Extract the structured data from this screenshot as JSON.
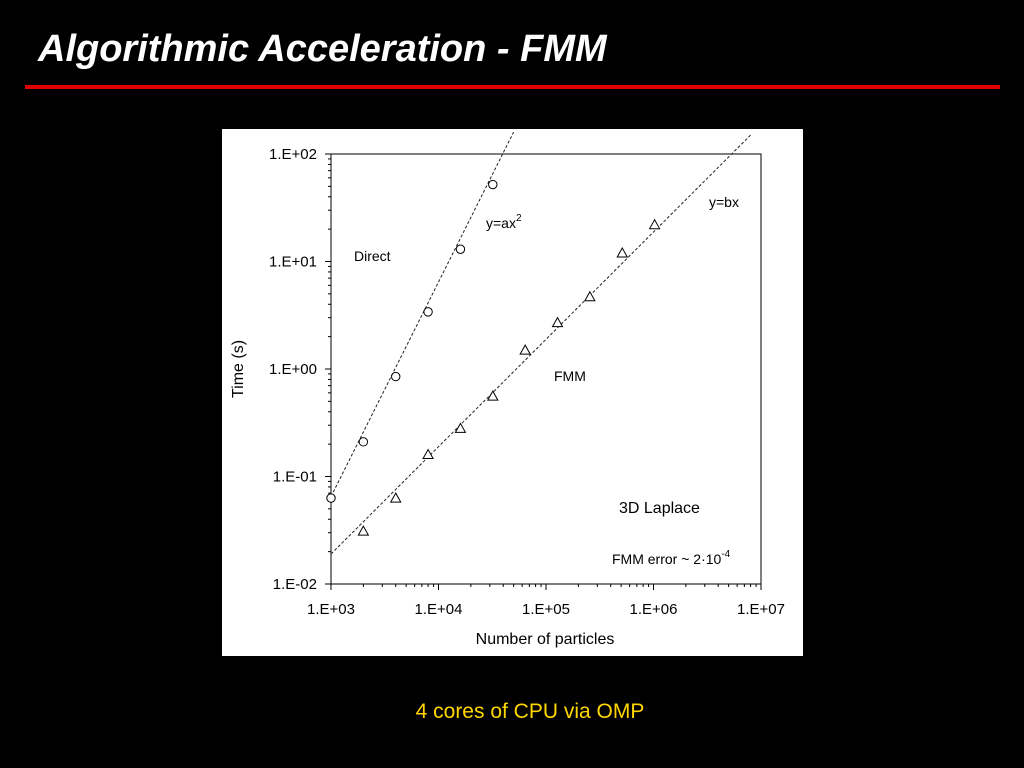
{
  "slide": {
    "title": "Algorithmic Acceleration - FMM",
    "footer": "4 cores of CPU via OMP",
    "rule_color": "#e00000",
    "footer_color": "#ffd700"
  },
  "chart_data": {
    "type": "scatter",
    "xscale": "log",
    "yscale": "log",
    "xlim": [
      1000,
      10000000
    ],
    "ylim": [
      0.01,
      100
    ],
    "xticks": [
      "1.E+03",
      "1.E+04",
      "1.E+05",
      "1.E+06",
      "1.E+07"
    ],
    "yticks": [
      "1.E-02",
      "1.E-01",
      "1.E+00",
      "1.E+01",
      "1.E+02"
    ],
    "xlabel": "Number of particles",
    "ylabel": "Time (s)",
    "grid": false,
    "series": [
      {
        "name": "Direct",
        "marker": "circle",
        "points": [
          {
            "x": 1000,
            "y": 0.063
          },
          {
            "x": 2000,
            "y": 0.21
          },
          {
            "x": 4000,
            "y": 0.85
          },
          {
            "x": 8000,
            "y": 3.4
          },
          {
            "x": 16000,
            "y": 13
          },
          {
            "x": 32000,
            "y": 52
          }
        ]
      },
      {
        "name": "FMM",
        "marker": "triangle",
        "points": [
          {
            "x": 2000,
            "y": 0.031
          },
          {
            "x": 4000,
            "y": 0.063
          },
          {
            "x": 8000,
            "y": 0.16
          },
          {
            "x": 16000,
            "y": 0.28
          },
          {
            "x": 32000,
            "y": 0.56
          },
          {
            "x": 64000,
            "y": 1.5
          },
          {
            "x": 128000,
            "y": 2.7
          },
          {
            "x": 256000,
            "y": 4.7
          },
          {
            "x": 512000,
            "y": 12
          },
          {
            "x": 1024000,
            "y": 22
          }
        ]
      }
    ],
    "fits": [
      {
        "label": "y=ax",
        "superscript": "2",
        "from": [
          1000,
          0.065
        ],
        "to": [
          50000,
          160
        ]
      },
      {
        "label": "y=bx",
        "superscript": "",
        "from": [
          1000,
          0.019
        ],
        "to": [
          8000000,
          150
        ]
      }
    ],
    "annotations": {
      "direct": "Direct",
      "fmm": "FMM",
      "problem": "3D Laplace",
      "error": "FMM error  ~ 2·10",
      "error_exp": "-4"
    }
  }
}
